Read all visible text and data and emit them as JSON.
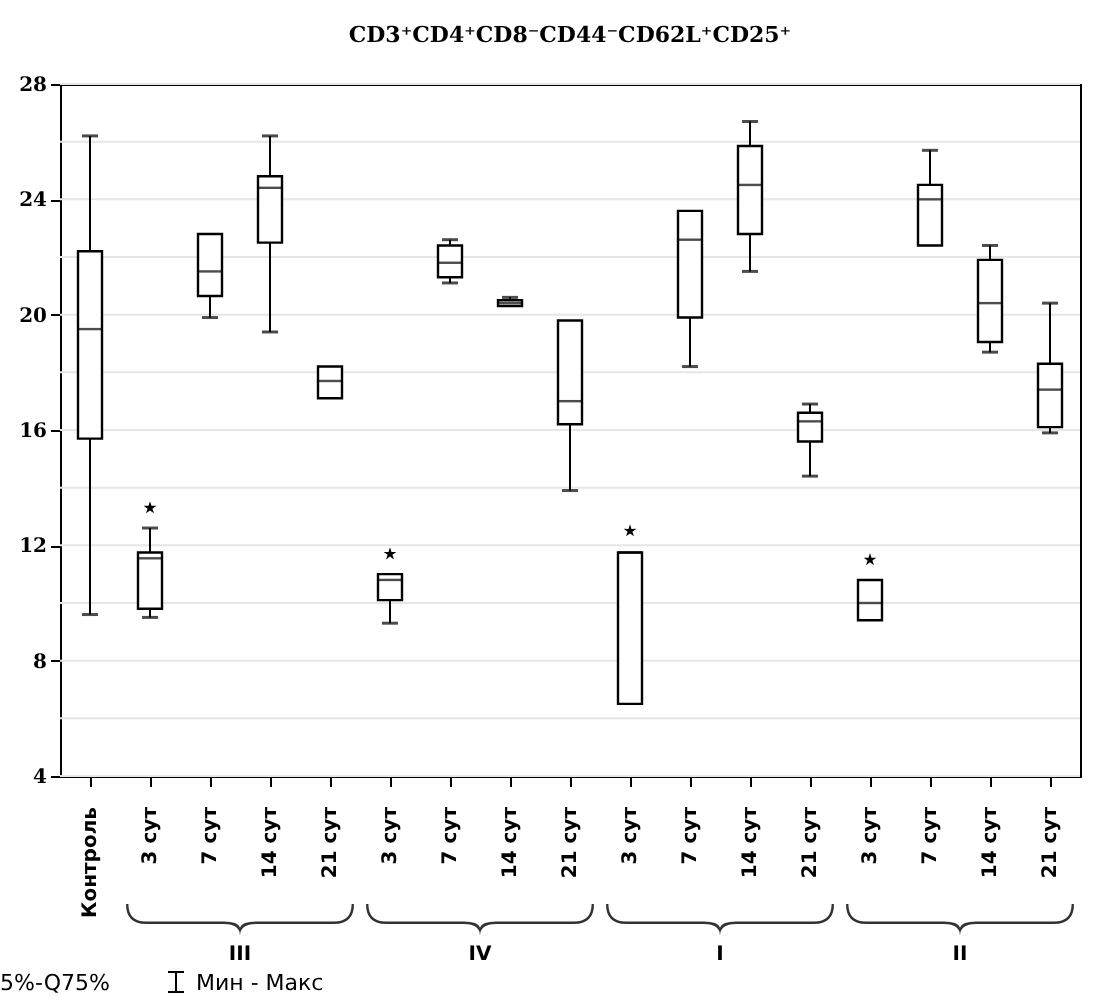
{
  "chart_data": {
    "type": "box",
    "title": "CD3⁺CD4⁺CD8⁻CD44⁻CD62L⁺CD25⁺",
    "categories": [
      "Контроль",
      "3 сут",
      "7 сут",
      "14 сут",
      "21 сут",
      "3 сут",
      "7 сут",
      "14 сут",
      "21 сут",
      "3 сут",
      "7 сут",
      "14 сут",
      "21 сут",
      "3 сут",
      "7 сут",
      "14 сут",
      "21 сут"
    ],
    "series": [
      {
        "color": "#000000",
        "boxes": [
          {
            "low": 9.6,
            "q1": 15.7,
            "median": 19.5,
            "q3": 22.2,
            "high": 26.2
          },
          {
            "low": 9.5,
            "q1": 9.8,
            "median": 11.55,
            "q3": 11.75,
            "high": 12.6
          },
          {
            "low": 19.9,
            "q1": 20.65,
            "median": 21.5,
            "q3": 22.8,
            "high": 22.8
          },
          {
            "low": 19.4,
            "q1": 22.5,
            "median": 24.4,
            "q3": 24.8,
            "high": 26.2
          },
          {
            "low": 17.1,
            "q1": 17.1,
            "median": 17.7,
            "q3": 18.2,
            "high": 18.2
          },
          {
            "low": 9.3,
            "q1": 10.1,
            "median": 10.8,
            "q3": 11.0,
            "high": 11.0
          },
          {
            "low": 21.1,
            "q1": 21.3,
            "median": 21.8,
            "q3": 22.4,
            "high": 22.6
          },
          {
            "low": 20.3,
            "q1": 20.3,
            "median": 20.4,
            "q3": 20.5,
            "high": 20.6
          },
          {
            "low": 13.9,
            "q1": 16.2,
            "median": 17.0,
            "q3": 19.8,
            "high": 19.8
          },
          {
            "low": 6.5,
            "q1": 6.5,
            "median": 11.75,
            "q3": 11.75,
            "high": 11.75
          },
          {
            "low": 18.2,
            "q1": 19.9,
            "median": 22.6,
            "q3": 23.6,
            "high": 23.6
          },
          {
            "low": 21.5,
            "q1": 22.8,
            "median": 24.5,
            "q3": 25.85,
            "high": 26.7
          },
          {
            "low": 14.4,
            "q1": 15.6,
            "median": 16.3,
            "q3": 16.6,
            "high": 16.9
          },
          {
            "low": 9.4,
            "q1": 9.4,
            "median": 10.0,
            "q3": 10.8,
            "high": 10.8
          },
          {
            "low": 22.4,
            "q1": 22.4,
            "median": 24.0,
            "q3": 24.5,
            "high": 25.7
          },
          {
            "low": 18.7,
            "q1": 19.05,
            "median": 20.4,
            "q3": 21.9,
            "high": 22.4
          },
          {
            "low": 15.9,
            "q1": 16.1,
            "median": 17.4,
            "q3": 18.3,
            "high": 20.4
          }
        ]
      },
      {
        "type": "scatter",
        "marker": "star",
        "color": "#000000",
        "values": [
          null,
          13.3,
          null,
          null,
          null,
          11.7,
          null,
          null,
          null,
          12.5,
          null,
          null,
          null,
          11.5,
          null,
          null,
          null
        ]
      }
    ],
    "ylim": [
      4,
      28
    ],
    "yticks": [
      4,
      {
        "value": 6,
        "label": null
      },
      8,
      {
        "value": 10,
        "label": null
      },
      12,
      {
        "value": 14,
        "label": null
      },
      16,
      {
        "value": 18,
        "label": null
      },
      20,
      {
        "value": 22,
        "label": null
      },
      24,
      {
        "value": 26,
        "label": null
      },
      28
    ],
    "grid": "y",
    "annotations": [
      "III",
      "IV",
      "I",
      "II",
      "5%-Q75%",
      "Мин - Макс"
    ]
  }
}
